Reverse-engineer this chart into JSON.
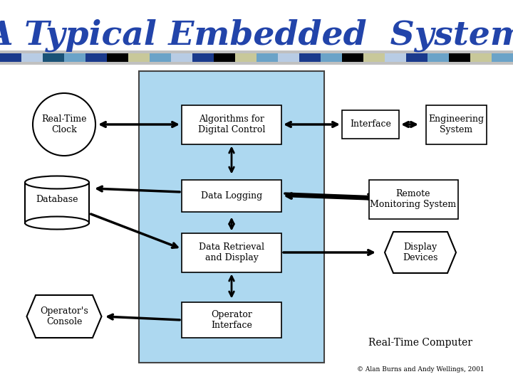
{
  "title": "A Typical Embedded  System",
  "title_color": "#2244aa",
  "title_fontsize": 34,
  "bg_color": "#ffffff",
  "central_box_color": "#add8f0",
  "copyright": "© Alan Burns and Andy Wellings, 2001",
  "rtc_label": "Real-Time Computer",
  "stripe_colors": [
    "#1a3a8c",
    "#b8cce4",
    "#1a5276",
    "#b8cce4",
    "#1a3a8c",
    "#000000",
    "#c8c89a",
    "#6ba3c8",
    "#b8cce4",
    "#1a3a8c",
    "#000000",
    "#c8c89a",
    "#6ba3c8",
    "#b8cce4",
    "#1a3a8c",
    "#6ba3c8",
    "#000000",
    "#c8c89a",
    "#b8cce4",
    "#1a3a8c",
    "#6ba3c8"
  ]
}
